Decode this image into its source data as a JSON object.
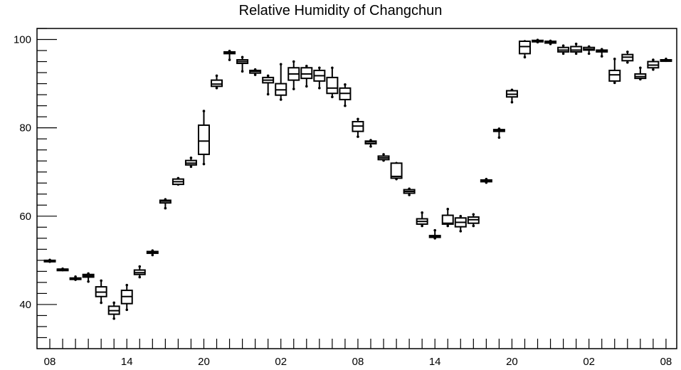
{
  "chart_data": {
    "type": "box",
    "title": "Relative Humidity of Changchun",
    "xlabel": "",
    "ylabel": "",
    "ylim": [
      30,
      102.5
    ],
    "y_ticks": [
      40,
      60,
      80,
      100
    ],
    "x_tick_labels": [
      "08",
      "14",
      "20",
      "02",
      "08",
      "14",
      "20",
      "02",
      "08"
    ],
    "x_tick_hours": [
      0,
      6,
      12,
      18,
      24,
      30,
      36,
      42,
      48
    ],
    "grid": false,
    "boxes": [
      {
        "hour": 0,
        "min": 49.7,
        "q1": 49.8,
        "median": 49.9,
        "q3": 50.0,
        "max": 50.1
      },
      {
        "hour": 1,
        "min": 47.8,
        "q1": 47.9,
        "median": 48.0,
        "q3": 48.0,
        "max": 48.1
      },
      {
        "hour": 2,
        "min": 45.6,
        "q1": 45.8,
        "median": 45.9,
        "q3": 46.0,
        "max": 46.3
      },
      {
        "hour": 3,
        "min": 45.2,
        "q1": 46.2,
        "median": 46.5,
        "q3": 46.8,
        "max": 47.0
      },
      {
        "hour": 4,
        "min": 40.4,
        "q1": 41.8,
        "median": 42.8,
        "q3": 44.0,
        "max": 45.4
      },
      {
        "hour": 5,
        "min": 36.8,
        "q1": 37.8,
        "median": 38.6,
        "q3": 39.6,
        "max": 40.4
      },
      {
        "hour": 6,
        "min": 38.8,
        "q1": 40.2,
        "median": 41.8,
        "q3": 43.2,
        "max": 44.4
      },
      {
        "hour": 7,
        "min": 46.2,
        "q1": 46.8,
        "median": 47.2,
        "q3": 47.8,
        "max": 48.6
      },
      {
        "hour": 8,
        "min": 51.2,
        "q1": 51.6,
        "median": 51.8,
        "q3": 52.0,
        "max": 52.2
      },
      {
        "hour": 9,
        "min": 61.8,
        "q1": 63.0,
        "median": 63.4,
        "q3": 63.6,
        "max": 63.8
      },
      {
        "hour": 10,
        "min": 67.2,
        "q1": 67.2,
        "median": 67.8,
        "q3": 68.4,
        "max": 68.6
      },
      {
        "hour": 11,
        "min": 71.2,
        "q1": 71.6,
        "median": 72.0,
        "q3": 72.6,
        "max": 73.2
      },
      {
        "hour": 12,
        "min": 71.8,
        "q1": 74.0,
        "median": 77.0,
        "q3": 80.6,
        "max": 83.8
      },
      {
        "hour": 13,
        "min": 89.0,
        "q1": 89.4,
        "median": 89.9,
        "q3": 90.8,
        "max": 91.8
      },
      {
        "hour": 14,
        "min": 95.4,
        "q1": 96.8,
        "median": 97.0,
        "q3": 97.2,
        "max": 97.4
      },
      {
        "hour": 15,
        "min": 92.8,
        "q1": 94.6,
        "median": 95.0,
        "q3": 95.4,
        "max": 96.0
      },
      {
        "hour": 16,
        "min": 92.0,
        "q1": 92.4,
        "median": 92.8,
        "q3": 93.0,
        "max": 93.2
      },
      {
        "hour": 17,
        "min": 87.6,
        "q1": 90.2,
        "median": 90.8,
        "q3": 91.4,
        "max": 91.8
      },
      {
        "hour": 18,
        "min": 86.4,
        "q1": 87.4,
        "median": 88.6,
        "q3": 90.0,
        "max": 94.4
      },
      {
        "hour": 19,
        "min": 88.8,
        "q1": 90.8,
        "median": 92.2,
        "q3": 93.6,
        "max": 95.0
      },
      {
        "hour": 20,
        "min": 89.4,
        "q1": 91.2,
        "median": 92.2,
        "q3": 93.6,
        "max": 94.0
      },
      {
        "hour": 21,
        "min": 89.0,
        "q1": 90.6,
        "median": 91.8,
        "q3": 93.0,
        "max": 93.6
      },
      {
        "hour": 22,
        "min": 87.0,
        "q1": 87.8,
        "median": 89.0,
        "q3": 91.4,
        "max": 93.6
      },
      {
        "hour": 23,
        "min": 85.0,
        "q1": 86.4,
        "median": 87.8,
        "q3": 89.0,
        "max": 89.8
      },
      {
        "hour": 24,
        "min": 78.0,
        "q1": 79.2,
        "median": 80.4,
        "q3": 81.4,
        "max": 82.0
      },
      {
        "hour": 25,
        "min": 75.8,
        "q1": 76.4,
        "median": 76.8,
        "q3": 77.0,
        "max": 77.2
      },
      {
        "hour": 26,
        "min": 72.6,
        "q1": 72.8,
        "median": 73.2,
        "q3": 73.6,
        "max": 74.0
      },
      {
        "hour": 27,
        "min": 68.4,
        "q1": 68.6,
        "median": 69.0,
        "q3": 72.0,
        "max": 72.0
      },
      {
        "hour": 28,
        "min": 64.8,
        "q1": 65.2,
        "median": 65.6,
        "q3": 66.0,
        "max": 66.2
      },
      {
        "hour": 29,
        "min": 57.8,
        "q1": 58.2,
        "median": 58.8,
        "q3": 59.4,
        "max": 60.8
      },
      {
        "hour": 30,
        "min": 55.0,
        "q1": 55.2,
        "median": 55.4,
        "q3": 55.6,
        "max": 56.8
      },
      {
        "hour": 31,
        "min": 57.8,
        "q1": 58.2,
        "median": 58.4,
        "q3": 60.2,
        "max": 61.6
      },
      {
        "hour": 32,
        "min": 56.6,
        "q1": 57.6,
        "median": 58.6,
        "q3": 59.6,
        "max": 60.0
      },
      {
        "hour": 33,
        "min": 57.8,
        "q1": 58.4,
        "median": 59.2,
        "q3": 59.8,
        "max": 60.4
      },
      {
        "hour": 34,
        "min": 67.6,
        "q1": 67.8,
        "median": 68.0,
        "q3": 68.2,
        "max": 68.4
      },
      {
        "hour": 35,
        "min": 77.8,
        "q1": 79.2,
        "median": 79.4,
        "q3": 79.6,
        "max": 79.8
      },
      {
        "hour": 36,
        "min": 85.8,
        "q1": 87.0,
        "median": 87.6,
        "q3": 88.4,
        "max": 88.6
      },
      {
        "hour": 37,
        "min": 96.0,
        "q1": 96.8,
        "median": 98.4,
        "q3": 99.6,
        "max": 99.6
      },
      {
        "hour": 38,
        "min": 99.4,
        "q1": 99.6,
        "median": 99.7,
        "q3": 99.8,
        "max": 99.9
      },
      {
        "hour": 39,
        "min": 99.0,
        "q1": 99.2,
        "median": 99.4,
        "q3": 99.6,
        "max": 99.7
      },
      {
        "hour": 40,
        "min": 96.8,
        "q1": 97.2,
        "median": 97.6,
        "q3": 98.2,
        "max": 98.6
      },
      {
        "hour": 41,
        "min": 96.8,
        "q1": 97.2,
        "median": 97.6,
        "q3": 98.4,
        "max": 99.0
      },
      {
        "hour": 42,
        "min": 96.8,
        "q1": 97.6,
        "median": 97.8,
        "q3": 98.2,
        "max": 98.4
      },
      {
        "hour": 43,
        "min": 96.2,
        "q1": 97.2,
        "median": 97.4,
        "q3": 97.6,
        "max": 97.8
      },
      {
        "hour": 44,
        "min": 90.2,
        "q1": 90.6,
        "median": 92.0,
        "q3": 93.0,
        "max": 95.6
      },
      {
        "hour": 45,
        "min": 94.8,
        "q1": 95.2,
        "median": 96.0,
        "q3": 96.6,
        "max": 97.2
      },
      {
        "hour": 46,
        "min": 91.0,
        "q1": 91.2,
        "median": 91.6,
        "q3": 92.2,
        "max": 93.6
      },
      {
        "hour": 47,
        "min": 93.2,
        "q1": 93.6,
        "median": 94.2,
        "q3": 95.0,
        "max": 95.4
      },
      {
        "hour": 48,
        "min": 95.2,
        "q1": 95.2,
        "median": 95.4,
        "q3": 95.4,
        "max": 95.6
      }
    ],
    "colors": {
      "stroke": "#000000",
      "background": "#ffffff"
    }
  }
}
